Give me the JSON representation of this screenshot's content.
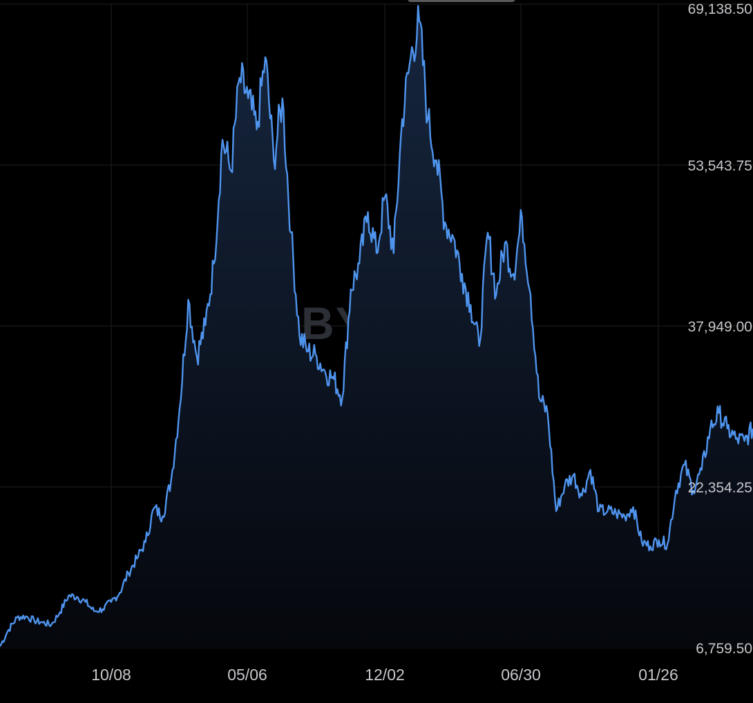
{
  "chart_data": {
    "type": "area",
    "title": "",
    "xlabel": "",
    "ylabel": "",
    "watermark": "BYBIT",
    "y_ticks": [
      6759.5,
      22354.25,
      37949.0,
      53543.75,
      69138.5
    ],
    "y_tick_labels": [
      "6,759.50",
      "22,354.25",
      "37,949.00",
      "53,543.75",
      "69,138.50"
    ],
    "ylim": [
      6759.5,
      69138.5
    ],
    "x_tick_labels": [
      "10/08",
      "05/06",
      "12/02",
      "06/30",
      "01/26"
    ],
    "grid": true,
    "colors": {
      "background": "#000000",
      "line": "#4f94ee",
      "area_top": "#16263f",
      "area_bottom": "#05070c",
      "grid": "#1f1f24",
      "label": "#c7c7cc",
      "watermark": "#2c2f36"
    },
    "series": [
      {
        "values": [
          6900,
          8500,
          9700,
          9800,
          9400,
          9200,
          9000,
          10200,
          11800,
          11700,
          11200,
          10300,
          10500,
          11200,
          12100,
          14000,
          15400,
          17000,
          20300,
          19500,
          23000,
          30000,
          40500,
          35000,
          38000,
          44000,
          56000,
          53000,
          62000,
          60000,
          57000,
          64000,
          54000,
          60000,
          47000,
          37000,
          35500,
          35000,
          33500,
          32800,
          31000,
          41500,
          44000,
          49000,
          45000,
          50500,
          45000,
          58000,
          64000,
          67500,
          58000,
          54000,
          48000,
          46500,
          43000,
          40000,
          36000,
          47000,
          41000,
          46000,
          43000,
          48500,
          41000,
          31000,
          29500,
          20000,
          22500,
          23500,
          21500,
          24000,
          20000,
          20000,
          19800,
          19500,
          20400,
          17000,
          16600,
          17200,
          16800,
          22000,
          24500,
          22000,
          24000,
          28000,
          29500,
          28000,
          27000,
          26800,
          28000
        ]
      }
    ]
  }
}
